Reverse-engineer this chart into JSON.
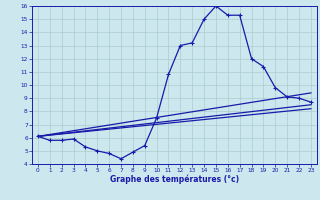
{
  "bg_color": "#cce8ee",
  "grid_color": "#aacccc",
  "line_color": "#1a1aaa",
  "xlabel": "Graphe des températures (°c)",
  "xlim": [
    -0.5,
    23.5
  ],
  "ylim": [
    4,
    16
  ],
  "yticks": [
    4,
    5,
    6,
    7,
    8,
    9,
    10,
    11,
    12,
    13,
    14,
    15,
    16
  ],
  "xticks": [
    0,
    1,
    2,
    3,
    4,
    5,
    6,
    7,
    8,
    9,
    10,
    11,
    12,
    13,
    14,
    15,
    16,
    17,
    18,
    19,
    20,
    21,
    22,
    23
  ],
  "main_x": [
    0,
    1,
    2,
    3,
    4,
    5,
    6,
    7,
    8,
    9,
    10,
    11,
    12,
    13,
    14,
    15,
    16,
    17,
    18,
    19,
    20,
    21,
    22,
    23
  ],
  "main_y": [
    6.1,
    5.8,
    5.8,
    5.9,
    5.3,
    5.0,
    4.8,
    4.4,
    4.9,
    5.4,
    7.5,
    10.8,
    13.0,
    13.2,
    15.0,
    16.0,
    15.3,
    15.3,
    12.0,
    11.4,
    9.8,
    9.1,
    9.0,
    8.7
  ],
  "line2_x": [
    0,
    23
  ],
  "line2_y": [
    6.1,
    8.5
  ],
  "line3_x": [
    0,
    23
  ],
  "line3_y": [
    6.1,
    8.2
  ],
  "line4_x": [
    0,
    23
  ],
  "line4_y": [
    6.1,
    9.4
  ]
}
